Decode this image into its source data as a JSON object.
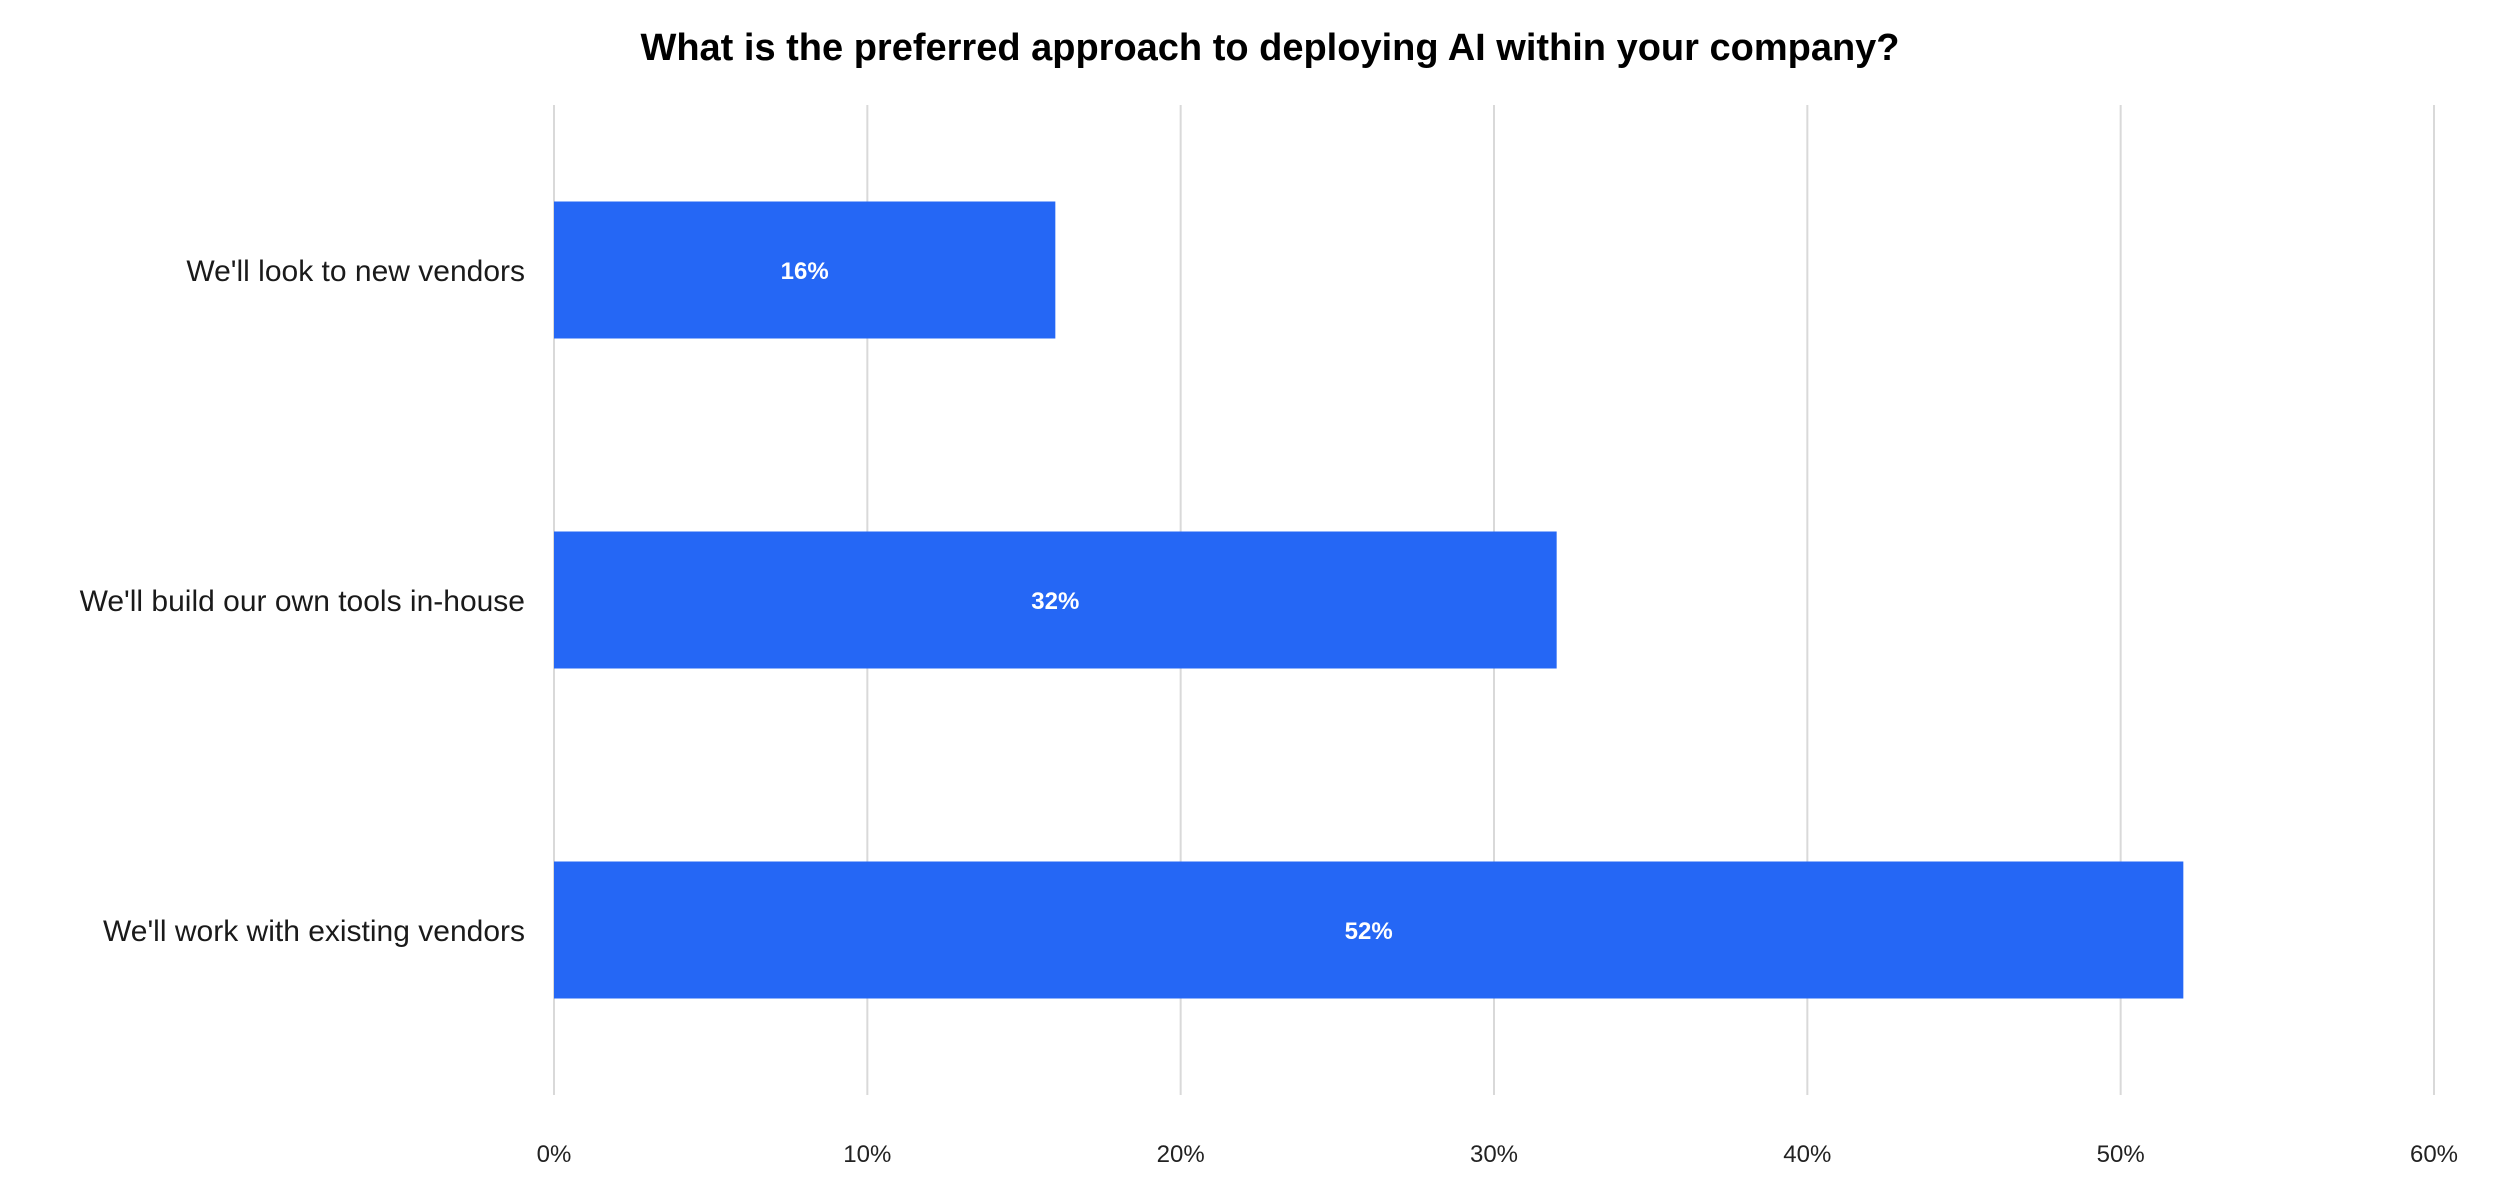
{
  "chart_data": {
    "type": "bar",
    "orientation": "horizontal",
    "title": "What is the preferred approach to deploying AI within your company?",
    "categories": [
      "We'll look to new vendors",
      "We'll build our own tools in-house",
      "We'll work with existing vendors"
    ],
    "values": [
      16,
      32,
      52
    ],
    "data_labels": [
      "16%",
      "32%",
      "52%"
    ],
    "xlim": [
      0,
      60
    ],
    "x_ticks": [
      0,
      10,
      20,
      30,
      40,
      50,
      60
    ],
    "x_tick_labels": [
      "0%",
      "10%",
      "20%",
      "30%",
      "40%",
      "50%",
      "60%"
    ],
    "xlabel": "",
    "ylabel": "",
    "grid": true,
    "legend": "none",
    "bar_color": "#2567f5"
  }
}
